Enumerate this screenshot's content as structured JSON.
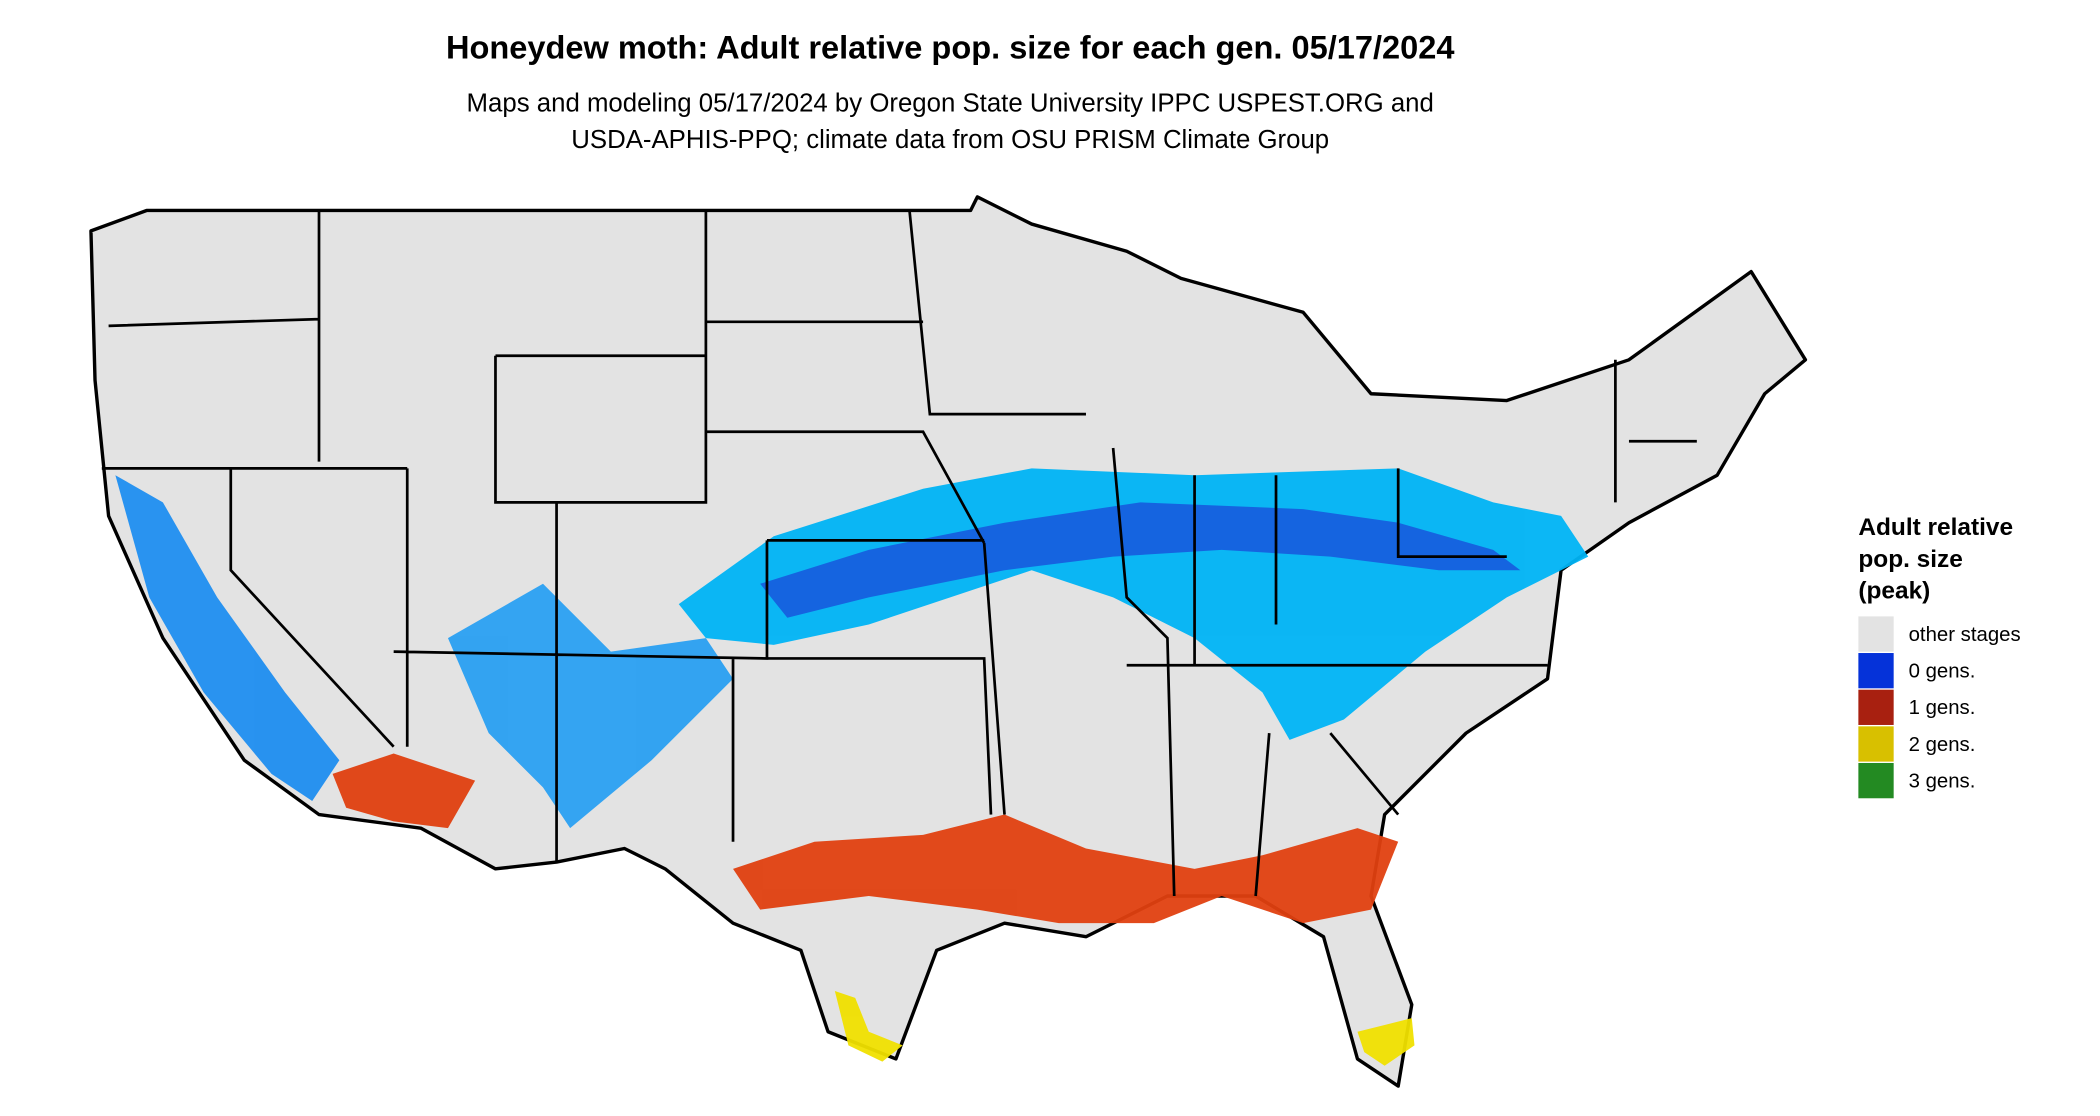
{
  "header": {
    "title": "Honeydew moth: Adult relative pop. size for each gen. 05/17/2024",
    "subtitle": [
      "Maps and modeling 05/17/2024 by Oregon State University IPPC USPEST.ORG and",
      "USDA-APHIS-PPQ; climate data from OSU PRISM Climate Group"
    ]
  },
  "legend": {
    "title": [
      "Adult relative",
      "pop. size",
      "(peak)"
    ],
    "items": [
      {
        "label": "other stages",
        "color": "#e3e3e3"
      },
      {
        "label": "0 gens.",
        "color": "#0532d9"
      },
      {
        "label": "1 gens.",
        "color": "#a82010"
      },
      {
        "label": "2 gens.",
        "color": "#d8c000"
      },
      {
        "label": "3 gens.",
        "color": "#238a22"
      }
    ]
  }
}
